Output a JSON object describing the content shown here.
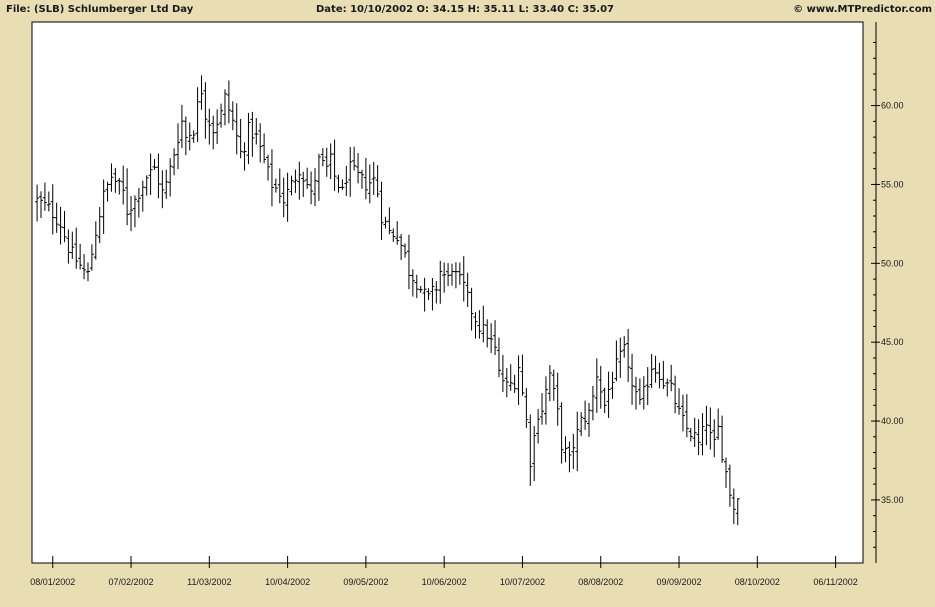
{
  "header": {
    "file_label": "File: (SLB) Schlumberger Ltd Day",
    "ohlc_label": "Date: 10/10/2002  O: 34.15  H: 35.11  L: 33.40  C: 35.07",
    "copyright": "© www.MTPredictor.com"
  },
  "colors": {
    "background": "#E8DDB3",
    "plot_area": "#FFFFFF",
    "bars": "#000000"
  },
  "chart_data": {
    "type": "ohlc",
    "symbol": "SLB",
    "y_axis_side": "right",
    "ylim": [
      31.0,
      65.3
    ],
    "yticks": [
      35.0,
      40.0,
      45.0,
      50.0,
      55.0,
      60.0
    ],
    "ytick_labels": [
      "35.00",
      "40.00",
      "45.00",
      "50.00",
      "55.00",
      "60.00"
    ],
    "xlim_bars": [
      -1.3,
      211
    ],
    "xtick_positions": [
      4,
      24,
      44,
      64,
      84,
      104,
      124,
      144,
      164,
      184,
      204
    ],
    "xtick_labels": [
      "08/01/2002",
      "07/02/2002",
      "11/03/2002",
      "10/04/2002",
      "09/05/2002",
      "10/06/2002",
      "10/07/2002",
      "08/08/2002",
      "09/09/2002",
      "08/10/2002",
      "06/11/2002"
    ],
    "close_path": [
      [
        0,
        54.0
      ],
      [
        3,
        53.5
      ],
      [
        6,
        52.5
      ],
      [
        8,
        51.0
      ],
      [
        10,
        50.2
      ],
      [
        12,
        49.5
      ],
      [
        13,
        49.3
      ],
      [
        15,
        52.0
      ],
      [
        17,
        54.3
      ],
      [
        19,
        55.5
      ],
      [
        20,
        55.2
      ],
      [
        22,
        54.5
      ],
      [
        23,
        53.3
      ],
      [
        25,
        54.0
      ],
      [
        28,
        55.5
      ],
      [
        30,
        56.0
      ],
      [
        32,
        54.5
      ],
      [
        33,
        55.0
      ],
      [
        35,
        57.0
      ],
      [
        37,
        59.0
      ],
      [
        38,
        58.0
      ],
      [
        40,
        58.5
      ],
      [
        41,
        60.0
      ],
      [
        42,
        61.0
      ],
      [
        43,
        59.5
      ],
      [
        45,
        58.5
      ],
      [
        47,
        59.5
      ],
      [
        48,
        60.5
      ],
      [
        50,
        59.0
      ],
      [
        52,
        57.0
      ],
      [
        53,
        57.5
      ],
      [
        54,
        58.5
      ],
      [
        56,
        58.0
      ],
      [
        58,
        56.5
      ],
      [
        60,
        55.0
      ],
      [
        62,
        54.5
      ],
      [
        63,
        54.0
      ],
      [
        65,
        55.0
      ],
      [
        67,
        56.0
      ],
      [
        69,
        55.0
      ],
      [
        70,
        54.3
      ],
      [
        72,
        56.5
      ],
      [
        74,
        56.0
      ],
      [
        75,
        56.5
      ],
      [
        76,
        55.5
      ],
      [
        78,
        54.5
      ],
      [
        79,
        55.5
      ],
      [
        80,
        56.0
      ],
      [
        82,
        55.5
      ],
      [
        84,
        55.0
      ],
      [
        86,
        55.3
      ],
      [
        87,
        54.5
      ],
      [
        88,
        53.0
      ],
      [
        90,
        52.0
      ],
      [
        92,
        51.8
      ],
      [
        94,
        50.5
      ],
      [
        95,
        49.5
      ],
      [
        97,
        48.8
      ],
      [
        99,
        48.0
      ],
      [
        100,
        47.8
      ],
      [
        102,
        48.5
      ],
      [
        103,
        49.5
      ],
      [
        105,
        49.0
      ],
      [
        106,
        49.8
      ],
      [
        107,
        49.2
      ],
      [
        109,
        48.5
      ],
      [
        111,
        47.0
      ],
      [
        113,
        46.0
      ],
      [
        115,
        45.5
      ],
      [
        117,
        44.5
      ],
      [
        118,
        43.0
      ],
      [
        120,
        42.2
      ],
      [
        122,
        42.5
      ],
      [
        123,
        43.5
      ],
      [
        125,
        40.0
      ],
      [
        126,
        37.5
      ],
      [
        128,
        40.5
      ],
      [
        129,
        40.8
      ],
      [
        131,
        43.0
      ],
      [
        133,
        40.5
      ],
      [
        134,
        38.5
      ],
      [
        136,
        37.5
      ],
      [
        137,
        38.5
      ],
      [
        139,
        40.0
      ],
      [
        141,
        40.5
      ],
      [
        142,
        41.5
      ],
      [
        143,
        43.0
      ],
      [
        144,
        42.0
      ],
      [
        145,
        41.0
      ],
      [
        146,
        42.0
      ],
      [
        148,
        43.5
      ],
      [
        150,
        44.5
      ],
      [
        151,
        43.0
      ],
      [
        152,
        42.5
      ],
      [
        154,
        41.0
      ],
      [
        156,
        42.5
      ],
      [
        157,
        43.5
      ],
      [
        159,
        43.0
      ],
      [
        160,
        42.5
      ],
      [
        162,
        42.0
      ],
      [
        164,
        40.5
      ],
      [
        166,
        39.5
      ],
      [
        168,
        39.0
      ],
      [
        169,
        38.5
      ],
      [
        171,
        40.0
      ],
      [
        172,
        39.0
      ],
      [
        173,
        38.5
      ],
      [
        174,
        39.5
      ],
      [
        175,
        38.0
      ],
      [
        177,
        35.5
      ],
      [
        178,
        34.5
      ],
      [
        179,
        35.07
      ]
    ]
  }
}
